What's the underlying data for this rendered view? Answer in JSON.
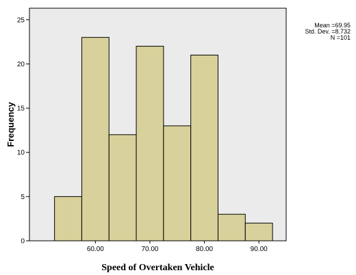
{
  "chart_data": {
    "type": "bar",
    "subtype": "histogram",
    "xlabel": "Speed of Overtaken Vehicle",
    "ylabel": "Frequency",
    "bins": [
      {
        "start": 52.5,
        "end": 57.5,
        "value": 5
      },
      {
        "start": 57.5,
        "end": 62.5,
        "value": 23
      },
      {
        "start": 62.5,
        "end": 67.5,
        "value": 12
      },
      {
        "start": 67.5,
        "end": 72.5,
        "value": 22
      },
      {
        "start": 72.5,
        "end": 77.5,
        "value": 13
      },
      {
        "start": 77.5,
        "end": 82.5,
        "value": 21
      },
      {
        "start": 82.5,
        "end": 87.5,
        "value": 3
      },
      {
        "start": 87.5,
        "end": 92.5,
        "value": 2
      }
    ],
    "xlim": [
      47.9,
      95.0
    ],
    "ylim": [
      0,
      26.3
    ],
    "xticks": [
      {
        "value": 60,
        "label": "60.00"
      },
      {
        "value": 70,
        "label": "70.00"
      },
      {
        "value": 80,
        "label": "80.00"
      },
      {
        "value": 90,
        "label": "90.00"
      }
    ],
    "yticks": [
      {
        "value": 0,
        "label": "0"
      },
      {
        "value": 5,
        "label": "5"
      },
      {
        "value": 10,
        "label": "10"
      },
      {
        "value": 15,
        "label": "15"
      },
      {
        "value": 20,
        "label": "20"
      },
      {
        "value": 25,
        "label": "25"
      }
    ],
    "grid": false,
    "stats": {
      "mean": "Mean =69.95",
      "std_dev": "Std. Dev. =8.732",
      "n": "N =101"
    },
    "colors": {
      "bar_fill": "#d8d19b",
      "bar_stroke": "#000000",
      "plot_background": "#ebebeb"
    }
  }
}
